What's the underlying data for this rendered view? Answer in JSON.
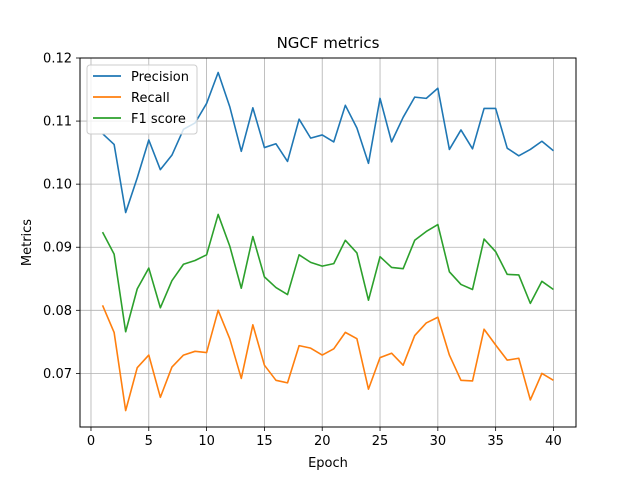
{
  "chart_data": {
    "type": "line",
    "title": "NGCF metrics",
    "xlabel": "Epoch",
    "ylabel": "Metrics",
    "xlim": [
      -0.95,
      41.95
    ],
    "ylim": [
      0.0615,
      0.12
    ],
    "xticks": [
      0,
      5,
      10,
      15,
      20,
      25,
      30,
      35,
      40
    ],
    "yticks": [
      0.07,
      0.08,
      0.09,
      0.1,
      0.11,
      0.12
    ],
    "ytick_labels": [
      "0.07",
      "0.08",
      "0.09",
      "0.10",
      "0.11",
      "0.12"
    ],
    "grid": true,
    "legend_position": "top-left",
    "x": [
      1,
      2,
      3,
      4,
      5,
      6,
      7,
      8,
      9,
      10,
      11,
      12,
      13,
      14,
      15,
      16,
      17,
      18,
      19,
      20,
      21,
      22,
      23,
      24,
      25,
      26,
      27,
      28,
      29,
      30,
      31,
      32,
      33,
      34,
      35,
      36,
      37,
      38,
      39,
      40
    ],
    "series": [
      {
        "name": "Precision",
        "color": "#1f77b4",
        "values": [
          0.108,
          0.1063,
          0.0955,
          0.101,
          0.107,
          0.1023,
          0.1046,
          0.1087,
          0.1097,
          0.1128,
          0.1177,
          0.1123,
          0.1052,
          0.1121,
          0.1058,
          0.1064,
          0.1036,
          0.1103,
          0.1073,
          0.1078,
          0.1067,
          0.1125,
          0.1089,
          0.1033,
          0.1136,
          0.1067,
          0.1106,
          0.1138,
          0.1136,
          0.1152,
          0.1055,
          0.1086,
          0.1056,
          0.112,
          0.112,
          0.1057,
          0.1045,
          0.1055,
          0.1068,
          0.1053
        ]
      },
      {
        "name": "Recall",
        "color": "#ff7f0e",
        "values": [
          0.0808,
          0.0765,
          0.0641,
          0.0709,
          0.0729,
          0.0662,
          0.071,
          0.0729,
          0.0735,
          0.0733,
          0.08,
          0.0755,
          0.0692,
          0.0777,
          0.0713,
          0.0689,
          0.0685,
          0.0744,
          0.074,
          0.0729,
          0.0739,
          0.0765,
          0.0755,
          0.0675,
          0.0725,
          0.0732,
          0.0713,
          0.076,
          0.078,
          0.0789,
          0.0729,
          0.0689,
          0.0688,
          0.077,
          0.0745,
          0.0721,
          0.0724,
          0.0658,
          0.07,
          0.0689
        ]
      },
      {
        "name": "F1 score",
        "color": "#2ca02c",
        "values": [
          0.0924,
          0.0889,
          0.0766,
          0.0834,
          0.0867,
          0.0804,
          0.0847,
          0.0873,
          0.0879,
          0.0888,
          0.0952,
          0.0902,
          0.0835,
          0.0917,
          0.0853,
          0.0836,
          0.0825,
          0.0888,
          0.0876,
          0.087,
          0.0874,
          0.0911,
          0.0891,
          0.0816,
          0.0885,
          0.0868,
          0.0866,
          0.0911,
          0.0925,
          0.0936,
          0.0861,
          0.0841,
          0.0833,
          0.0913,
          0.0893,
          0.0857,
          0.0856,
          0.0811,
          0.0846,
          0.0833
        ]
      }
    ]
  }
}
